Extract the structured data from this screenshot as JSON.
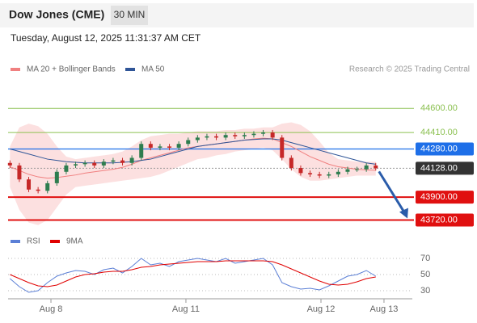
{
  "header": {
    "title": "Dow Jones (CME)",
    "timeframe": "30 MIN",
    "timestamp": "Tuesday, August 12, 2025 11:31:37 AM CET"
  },
  "chart_data": [
    {
      "type": "candlestick",
      "source": "Research © 2025 Trading Central",
      "xlim": [
        -0.2,
        42.9
      ],
      "ylim": [
        43640,
        44850
      ],
      "candles": {
        "up_color": "#2e7d4f",
        "down_color": "#c62828",
        "open": [
          44170,
          44150,
          44040,
          43960,
          43950,
          44010,
          44100,
          44150,
          44160,
          44170,
          44150,
          44180,
          44190,
          44170,
          44210,
          44320,
          44290,
          44300,
          44290,
          44320,
          44350,
          44370,
          44380,
          44370,
          44390,
          44380,
          44390,
          44400,
          44410,
          44370,
          44210,
          44130,
          44090,
          44080,
          44070,
          44080,
          44100,
          44120,
          44120,
          44150
        ],
        "high": [
          44190,
          44170,
          44060,
          43980,
          44030,
          44120,
          44170,
          44180,
          44190,
          44190,
          44200,
          44210,
          44210,
          44230,
          44340,
          44340,
          44320,
          44320,
          44340,
          44370,
          44390,
          44400,
          44400,
          44410,
          44410,
          44410,
          44420,
          44430,
          44430,
          44390,
          44230,
          44150,
          44110,
          44100,
          44100,
          44120,
          44140,
          44140,
          44170,
          44170
        ],
        "low": [
          44130,
          44020,
          43940,
          43930,
          43930,
          43990,
          44080,
          44130,
          44140,
          44130,
          44130,
          44160,
          44150,
          44150,
          44190,
          44270,
          44270,
          44270,
          44270,
          44300,
          44330,
          44350,
          44350,
          44350,
          44360,
          44360,
          44370,
          44380,
          44350,
          44190,
          44110,
          44070,
          44060,
          44050,
          44050,
          44060,
          44080,
          44100,
          44100,
          44110
        ],
        "close": [
          44150,
          44040,
          43960,
          43950,
          44010,
          44100,
          44150,
          44160,
          44170,
          44150,
          44180,
          44190,
          44170,
          44210,
          44320,
          44290,
          44300,
          44290,
          44320,
          44350,
          44370,
          44380,
          44370,
          44390,
          44380,
          44390,
          44400,
          44410,
          44370,
          44210,
          44130,
          44090,
          44080,
          44070,
          44080,
          44100,
          44120,
          44120,
          44150,
          44128
        ]
      },
      "series": [
        {
          "name": "MA 20 + Bollinger Bands",
          "color": "#f08080",
          "band_color": "#fbd3d3",
          "values": [
            44140,
            44110,
            44080,
            44060,
            44050,
            44055,
            44065,
            44075,
            44090,
            44100,
            44110,
            44120,
            44135,
            44160,
            44190,
            44210,
            44230,
            44250,
            44270,
            44290,
            44300,
            44310,
            44320,
            44330,
            44340,
            44350,
            44360,
            44365,
            44360,
            44330,
            44300,
            44260,
            44220,
            44190,
            44160,
            44140,
            44130,
            44120,
            44115,
            44112
          ],
          "upper": [
            44300,
            44450,
            44480,
            44460,
            44400,
            44300,
            44220,
            44200,
            44210,
            44220,
            44230,
            44240,
            44260,
            44300,
            44350,
            44380,
            44390,
            44400,
            44400,
            44410,
            44420,
            44420,
            44420,
            44430,
            44430,
            44440,
            44440,
            44450,
            44450,
            44480,
            44490,
            44470,
            44420,
            44340,
            44250,
            44200,
            44190,
            44180,
            44180,
            44180
          ],
          "lower": [
            43980,
            43800,
            43700,
            43680,
            43720,
            43820,
            43920,
            43980,
            43990,
            44000,
            44010,
            44020,
            44030,
            44040,
            44050,
            44060,
            44080,
            44110,
            44140,
            44170,
            44200,
            44210,
            44230,
            44240,
            44260,
            44270,
            44280,
            44290,
            44270,
            44200,
            44120,
            44060,
            44030,
            44030,
            44040,
            44050,
            44060,
            44070,
            44070,
            44070
          ]
        },
        {
          "name": "MA 50",
          "color": "#2f5597",
          "values": [
            44280,
            44260,
            44240,
            44220,
            44200,
            44190,
            44180,
            44175,
            44170,
            44170,
            44170,
            44170,
            44175,
            44180,
            44190,
            44200,
            44220,
            44240,
            44260,
            44280,
            44300,
            44310,
            44320,
            44330,
            44340,
            44350,
            44355,
            44360,
            44360,
            44350,
            44330,
            44310,
            44290,
            44270,
            44250,
            44230,
            44210,
            44190,
            44170,
            44160
          ]
        }
      ],
      "levels": [
        {
          "value": 44600,
          "label": "44600.00",
          "color": "#8cc152",
          "boxed": false,
          "dashed": false
        },
        {
          "value": 44410,
          "label": "44410.00",
          "color": "#8cc152",
          "boxed": false,
          "dashed": false
        },
        {
          "value": 44280,
          "label": "44280.00",
          "color": "#1e6fe8",
          "boxed": true,
          "dashed": false
        },
        {
          "value": 44128,
          "label": "44128.00",
          "color": "#333333",
          "boxed": true,
          "dashed": true
        },
        {
          "value": 43900,
          "label": "43900.00",
          "color": "#e01010",
          "boxed": true,
          "dashed": false
        },
        {
          "value": 43720,
          "label": "43720.00",
          "color": "#e01010",
          "boxed": true,
          "dashed": false
        }
      ],
      "arrow_color": "#2a5caa"
    },
    {
      "type": "line",
      "xlim": [
        -0.2,
        42.9
      ],
      "ylim": [
        20,
        80
      ],
      "yticks": [
        70,
        50,
        30
      ],
      "grid": true,
      "xticks": [
        {
          "value": 4.37,
          "label": "Aug 8"
        },
        {
          "value": 18.76,
          "label": "Aug 11"
        },
        {
          "value": 33.16,
          "label": "Aug 12"
        },
        {
          "value": 39.88,
          "label": "Aug 13"
        }
      ],
      "series": [
        {
          "name": "RSI",
          "color": "#5b7fd6",
          "values": [
            45,
            35,
            28,
            30,
            40,
            48,
            52,
            55,
            54,
            50,
            56,
            58,
            52,
            60,
            70,
            62,
            64,
            60,
            66,
            68,
            70,
            68,
            66,
            70,
            64,
            66,
            68,
            70,
            62,
            40,
            35,
            32,
            33,
            31,
            36,
            42,
            48,
            50,
            55,
            48
          ]
        },
        {
          "name": "9MA",
          "color": "#e00000",
          "values": [
            50,
            45,
            40,
            36,
            35,
            37,
            42,
            47,
            50,
            51,
            53,
            54,
            54,
            56,
            59,
            60,
            62,
            63,
            64,
            65,
            66,
            66,
            66,
            67,
            67,
            67,
            67,
            67,
            66,
            62,
            57,
            52,
            47,
            42,
            38,
            37,
            38,
            41,
            45,
            47
          ]
        }
      ]
    }
  ]
}
